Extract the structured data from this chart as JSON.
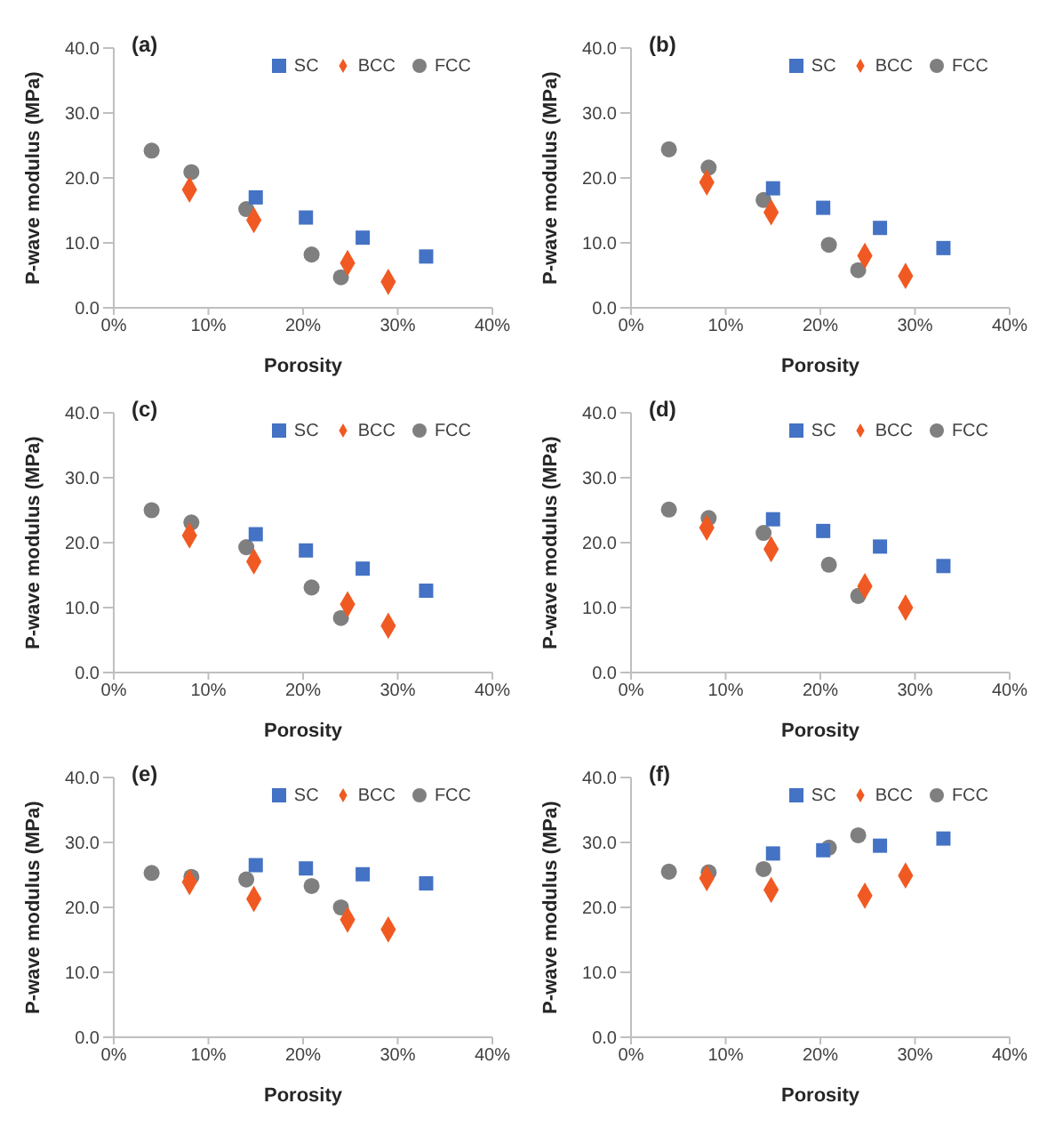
{
  "chart_data": [
    {
      "type": "scatter",
      "title": "(a)",
      "xlabel": "Porosity",
      "ylabel": "P-wave modulus (MPa)",
      "xlim": [
        0,
        40
      ],
      "xticks": [
        {
          "value": 0,
          "label": "0%"
        },
        {
          "value": 10,
          "label": "10%"
        },
        {
          "value": 20,
          "label": "20%"
        },
        {
          "value": 30,
          "label": "30%"
        },
        {
          "value": 40,
          "label": "40%"
        }
      ],
      "ylim": [
        0,
        40
      ],
      "yticks": [
        {
          "value": 0,
          "label": "0.0"
        },
        {
          "value": 10,
          "label": "10.0"
        },
        {
          "value": 20,
          "label": "20.0"
        },
        {
          "value": 30,
          "label": "30.0"
        },
        {
          "value": 40,
          "label": "40.0"
        }
      ],
      "grid": false,
      "legend": "top right",
      "series": [
        {
          "name": "SC",
          "color": "#4472c4",
          "marker": "square",
          "x": [
            15,
            20.3,
            26.3,
            33
          ],
          "values": [
            17.0,
            13.9,
            10.8,
            7.9
          ]
        },
        {
          "name": "BCC",
          "color": "#f05a22",
          "marker": "diamond",
          "x": [
            8,
            14.8,
            24.7,
            29
          ],
          "values": [
            18.2,
            13.5,
            6.9,
            4.0
          ]
        },
        {
          "name": "FCC",
          "color": "#7f7f7f",
          "marker": "circle",
          "x": [
            4,
            8.2,
            14,
            20.9,
            24
          ],
          "values": [
            24.2,
            20.9,
            15.2,
            8.2,
            4.7
          ]
        }
      ]
    },
    {
      "type": "scatter",
      "title": "(b)",
      "xlabel": "Porosity",
      "ylabel": "P-wave modulus (MPa)",
      "xlim": [
        0,
        40
      ],
      "xticks": [
        {
          "value": 0,
          "label": "0%"
        },
        {
          "value": 10,
          "label": "10%"
        },
        {
          "value": 20,
          "label": "20%"
        },
        {
          "value": 30,
          "label": "30%"
        },
        {
          "value": 40,
          "label": "40%"
        }
      ],
      "ylim": [
        0,
        40
      ],
      "yticks": [
        {
          "value": 0,
          "label": "0.0"
        },
        {
          "value": 10,
          "label": "10.0"
        },
        {
          "value": 20,
          "label": "20.0"
        },
        {
          "value": 30,
          "label": "30.0"
        },
        {
          "value": 40,
          "label": "40.0"
        }
      ],
      "grid": false,
      "legend": "top right",
      "series": [
        {
          "name": "SC",
          "color": "#4472c4",
          "marker": "square",
          "x": [
            15,
            20.3,
            26.3,
            33
          ],
          "values": [
            18.4,
            15.4,
            12.3,
            9.2
          ]
        },
        {
          "name": "BCC",
          "color": "#f05a22",
          "marker": "diamond",
          "x": [
            8,
            14.8,
            24.7,
            29
          ],
          "values": [
            19.3,
            14.7,
            8.0,
            4.9
          ]
        },
        {
          "name": "FCC",
          "color": "#7f7f7f",
          "marker": "circle",
          "x": [
            4,
            8.2,
            14,
            20.9,
            24
          ],
          "values": [
            24.4,
            21.6,
            16.6,
            9.7,
            5.8
          ]
        }
      ]
    },
    {
      "type": "scatter",
      "title": "(c)",
      "xlabel": "Porosity",
      "ylabel": "P-wave modulus (MPa)",
      "xlim": [
        0,
        40
      ],
      "xticks": [
        {
          "value": 0,
          "label": "0%"
        },
        {
          "value": 10,
          "label": "10%"
        },
        {
          "value": 20,
          "label": "20%"
        },
        {
          "value": 30,
          "label": "30%"
        },
        {
          "value": 40,
          "label": "40%"
        }
      ],
      "ylim": [
        0,
        40
      ],
      "yticks": [
        {
          "value": 0,
          "label": "0.0"
        },
        {
          "value": 10,
          "label": "10.0"
        },
        {
          "value": 20,
          "label": "20.0"
        },
        {
          "value": 30,
          "label": "30.0"
        },
        {
          "value": 40,
          "label": "40.0"
        }
      ],
      "grid": false,
      "legend": "top right",
      "series": [
        {
          "name": "SC",
          "color": "#4472c4",
          "marker": "square",
          "x": [
            15,
            20.3,
            26.3,
            33
          ],
          "values": [
            21.3,
            18.8,
            16.0,
            12.6
          ]
        },
        {
          "name": "BCC",
          "color": "#f05a22",
          "marker": "diamond",
          "x": [
            8,
            14.8,
            24.7,
            29
          ],
          "values": [
            21.1,
            17.1,
            10.5,
            7.2
          ]
        },
        {
          "name": "FCC",
          "color": "#7f7f7f",
          "marker": "circle",
          "x": [
            4,
            8.2,
            14,
            20.9,
            24
          ],
          "values": [
            25.0,
            23.1,
            19.3,
            13.1,
            8.4
          ]
        }
      ]
    },
    {
      "type": "scatter",
      "title": "(d)",
      "xlabel": "Porosity",
      "ylabel": "P-wave modulus (MPa)",
      "xlim": [
        0,
        40
      ],
      "xticks": [
        {
          "value": 0,
          "label": "0%"
        },
        {
          "value": 10,
          "label": "10%"
        },
        {
          "value": 20,
          "label": "20%"
        },
        {
          "value": 30,
          "label": "30%"
        },
        {
          "value": 40,
          "label": "40%"
        }
      ],
      "ylim": [
        0,
        40
      ],
      "yticks": [
        {
          "value": 0,
          "label": "0.0"
        },
        {
          "value": 10,
          "label": "10.0"
        },
        {
          "value": 20,
          "label": "20.0"
        },
        {
          "value": 30,
          "label": "30.0"
        },
        {
          "value": 40,
          "label": "40.0"
        }
      ],
      "grid": false,
      "legend": "top right",
      "series": [
        {
          "name": "SC",
          "color": "#4472c4",
          "marker": "square",
          "x": [
            15,
            20.3,
            26.3,
            33
          ],
          "values": [
            23.6,
            21.8,
            19.4,
            16.4
          ]
        },
        {
          "name": "BCC",
          "color": "#f05a22",
          "marker": "diamond",
          "x": [
            8,
            14.8,
            24.7,
            29
          ],
          "values": [
            22.3,
            19.0,
            13.3,
            10.0
          ]
        },
        {
          "name": "FCC",
          "color": "#7f7f7f",
          "marker": "circle",
          "x": [
            4,
            8.2,
            14,
            20.9,
            24
          ],
          "values": [
            25.1,
            23.8,
            21.5,
            16.6,
            11.8
          ]
        }
      ]
    },
    {
      "type": "scatter",
      "title": "(e)",
      "xlabel": "Porosity",
      "ylabel": "P-wave modulus (MPa)",
      "xlim": [
        0,
        40
      ],
      "xticks": [
        {
          "value": 0,
          "label": "0%"
        },
        {
          "value": 10,
          "label": "10%"
        },
        {
          "value": 20,
          "label": "20%"
        },
        {
          "value": 30,
          "label": "30%"
        },
        {
          "value": 40,
          "label": "40%"
        }
      ],
      "ylim": [
        0,
        40
      ],
      "yticks": [
        {
          "value": 0,
          "label": "0.0"
        },
        {
          "value": 10,
          "label": "10.0"
        },
        {
          "value": 20,
          "label": "20.0"
        },
        {
          "value": 30,
          "label": "30.0"
        },
        {
          "value": 40,
          "label": "40.0"
        }
      ],
      "grid": false,
      "legend": "top right",
      "series": [
        {
          "name": "SC",
          "color": "#4472c4",
          "marker": "square",
          "x": [
            15,
            20.3,
            26.3,
            33
          ],
          "values": [
            26.5,
            26.0,
            25.1,
            23.7
          ]
        },
        {
          "name": "BCC",
          "color": "#f05a22",
          "marker": "diamond",
          "x": [
            8,
            14.8,
            24.7,
            29
          ],
          "values": [
            23.9,
            21.3,
            18.1,
            16.6
          ]
        },
        {
          "name": "FCC",
          "color": "#7f7f7f",
          "marker": "circle",
          "x": [
            4,
            8.2,
            14,
            20.9,
            24
          ],
          "values": [
            25.3,
            24.7,
            24.3,
            23.3,
            20.0
          ]
        }
      ]
    },
    {
      "type": "scatter",
      "title": "(f)",
      "xlabel": "Porosity",
      "ylabel": "P-wave modulus (MPa)",
      "xlim": [
        0,
        40
      ],
      "xticks": [
        {
          "value": 0,
          "label": "0%"
        },
        {
          "value": 10,
          "label": "10%"
        },
        {
          "value": 20,
          "label": "20%"
        },
        {
          "value": 30,
          "label": "30%"
        },
        {
          "value": 40,
          "label": "40%"
        }
      ],
      "ylim": [
        0,
        40
      ],
      "yticks": [
        {
          "value": 0,
          "label": "0.0"
        },
        {
          "value": 10,
          "label": "10.0"
        },
        {
          "value": 20,
          "label": "20.0"
        },
        {
          "value": 30,
          "label": "30.0"
        },
        {
          "value": 40,
          "label": "40.0"
        }
      ],
      "grid": false,
      "legend": "top right",
      "series": [
        {
          "name": "SC",
          "color": "#4472c4",
          "marker": "square",
          "x": [
            15,
            20.3,
            26.3,
            33
          ],
          "values": [
            28.3,
            28.8,
            29.5,
            30.6
          ]
        },
        {
          "name": "BCC",
          "color": "#f05a22",
          "marker": "diamond",
          "x": [
            8,
            14.8,
            24.7,
            29
          ],
          "values": [
            24.5,
            22.7,
            21.8,
            24.9
          ]
        },
        {
          "name": "FCC",
          "color": "#7f7f7f",
          "marker": "circle",
          "x": [
            4,
            8.2,
            14,
            20.9,
            24
          ],
          "values": [
            25.5,
            25.4,
            25.9,
            29.2,
            31.1
          ]
        }
      ]
    }
  ]
}
